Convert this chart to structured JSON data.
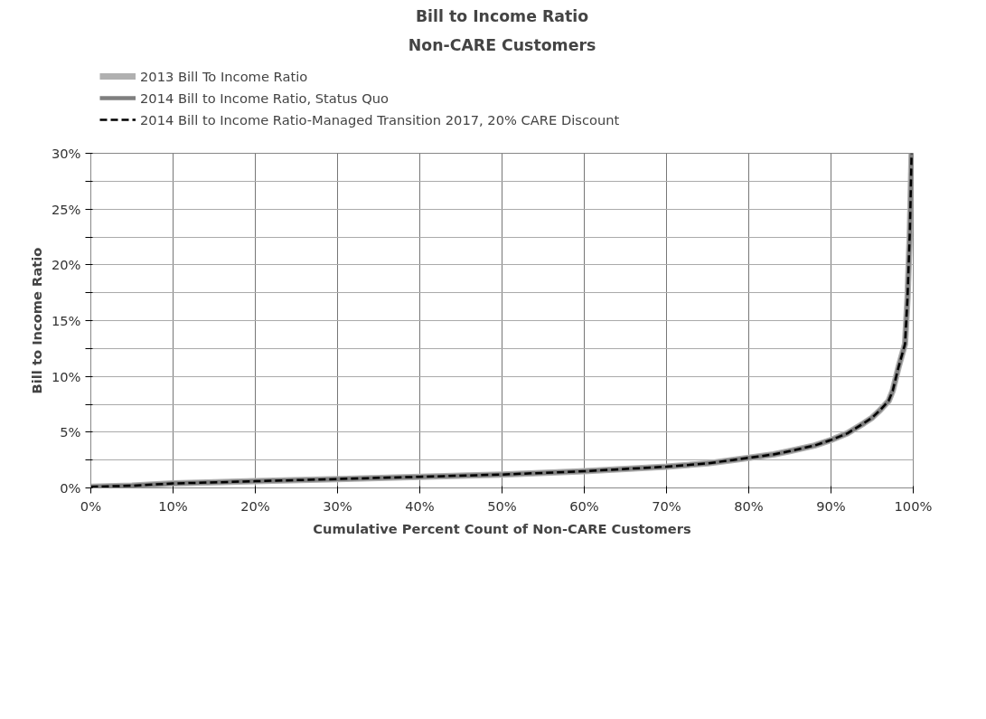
{
  "chart_data": {
    "type": "line",
    "title": "Bill to Income Ratio",
    "subtitle": "Non-CARE Customers",
    "xlabel": "Cumulative Percent Count of Non-CARE Customers",
    "ylabel": "Bill to Income Ratio",
    "x": [
      0,
      5,
      10,
      20,
      30,
      40,
      50,
      60,
      65,
      70,
      75,
      78,
      80,
      83,
      85,
      88,
      90,
      92,
      94,
      95,
      96,
      97,
      97.5,
      98.2,
      99,
      99.3,
      99.6,
      99.8
    ],
    "series": [
      {
        "name": "2013 Bill To Income Ratio",
        "color": "#b0b0b0",
        "line_style": "solid",
        "values": [
          0.1,
          0.2,
          0.4,
          0.6,
          0.8,
          1.0,
          1.2,
          1.5,
          1.7,
          1.9,
          2.2,
          2.5,
          2.7,
          3.0,
          3.3,
          3.8,
          4.3,
          4.9,
          5.8,
          6.3,
          7.0,
          7.8,
          8.7,
          10.8,
          12.9,
          17,
          23.3,
          30
        ]
      },
      {
        "name": "2014 Bill to Income Ratio, Status Quo",
        "color": "#7f7f7f",
        "line_style": "solid",
        "values": [
          0.1,
          0.2,
          0.4,
          0.6,
          0.8,
          1.0,
          1.2,
          1.5,
          1.7,
          1.9,
          2.2,
          2.5,
          2.7,
          3.0,
          3.3,
          3.8,
          4.3,
          4.9,
          5.8,
          6.3,
          7.0,
          7.8,
          8.7,
          10.8,
          12.9,
          17,
          23.3,
          30
        ]
      },
      {
        "name": "2014 Bill to Income Ratio-Managed Transition 2017, 20% CARE Discount",
        "color": "#000000",
        "line_style": "dashed",
        "values": [
          0.1,
          0.2,
          0.4,
          0.6,
          0.8,
          1.0,
          1.2,
          1.5,
          1.7,
          1.9,
          2.2,
          2.5,
          2.7,
          3.0,
          3.3,
          3.8,
          4.3,
          4.9,
          5.8,
          6.3,
          7.0,
          7.8,
          8.7,
          10.8,
          12.9,
          17,
          23.3,
          30
        ]
      }
    ],
    "xlim": [
      0,
      100
    ],
    "xticks": [
      {
        "value": 0,
        "label": "0%"
      },
      {
        "value": 10,
        "label": "10%"
      },
      {
        "value": 20,
        "label": "20%"
      },
      {
        "value": 30,
        "label": "30%"
      },
      {
        "value": 40,
        "label": "40%"
      },
      {
        "value": 50,
        "label": "50%"
      },
      {
        "value": 60,
        "label": "60%"
      },
      {
        "value": 70,
        "label": "70%"
      },
      {
        "value": 80,
        "label": "80%"
      },
      {
        "value": 90,
        "label": "90%"
      },
      {
        "value": 100,
        "label": "100%"
      }
    ],
    "ylim": [
      0,
      30
    ],
    "yticks": [
      {
        "value": 0,
        "label": "0%"
      },
      {
        "value": 2.5,
        "label": null
      },
      {
        "value": 5,
        "label": "5%"
      },
      {
        "value": 7.5,
        "label": null
      },
      {
        "value": 10,
        "label": "10%"
      },
      {
        "value": 12.5,
        "label": null
      },
      {
        "value": 15,
        "label": "15%"
      },
      {
        "value": 17.5,
        "label": null
      },
      {
        "value": 20,
        "label": "20%"
      },
      {
        "value": 22.5,
        "label": null
      },
      {
        "value": 25,
        "label": "25%"
      },
      {
        "value": 27.5,
        "label": null
      },
      {
        "value": 30,
        "label": "30%"
      }
    ],
    "grid": true,
    "legend": "top"
  }
}
